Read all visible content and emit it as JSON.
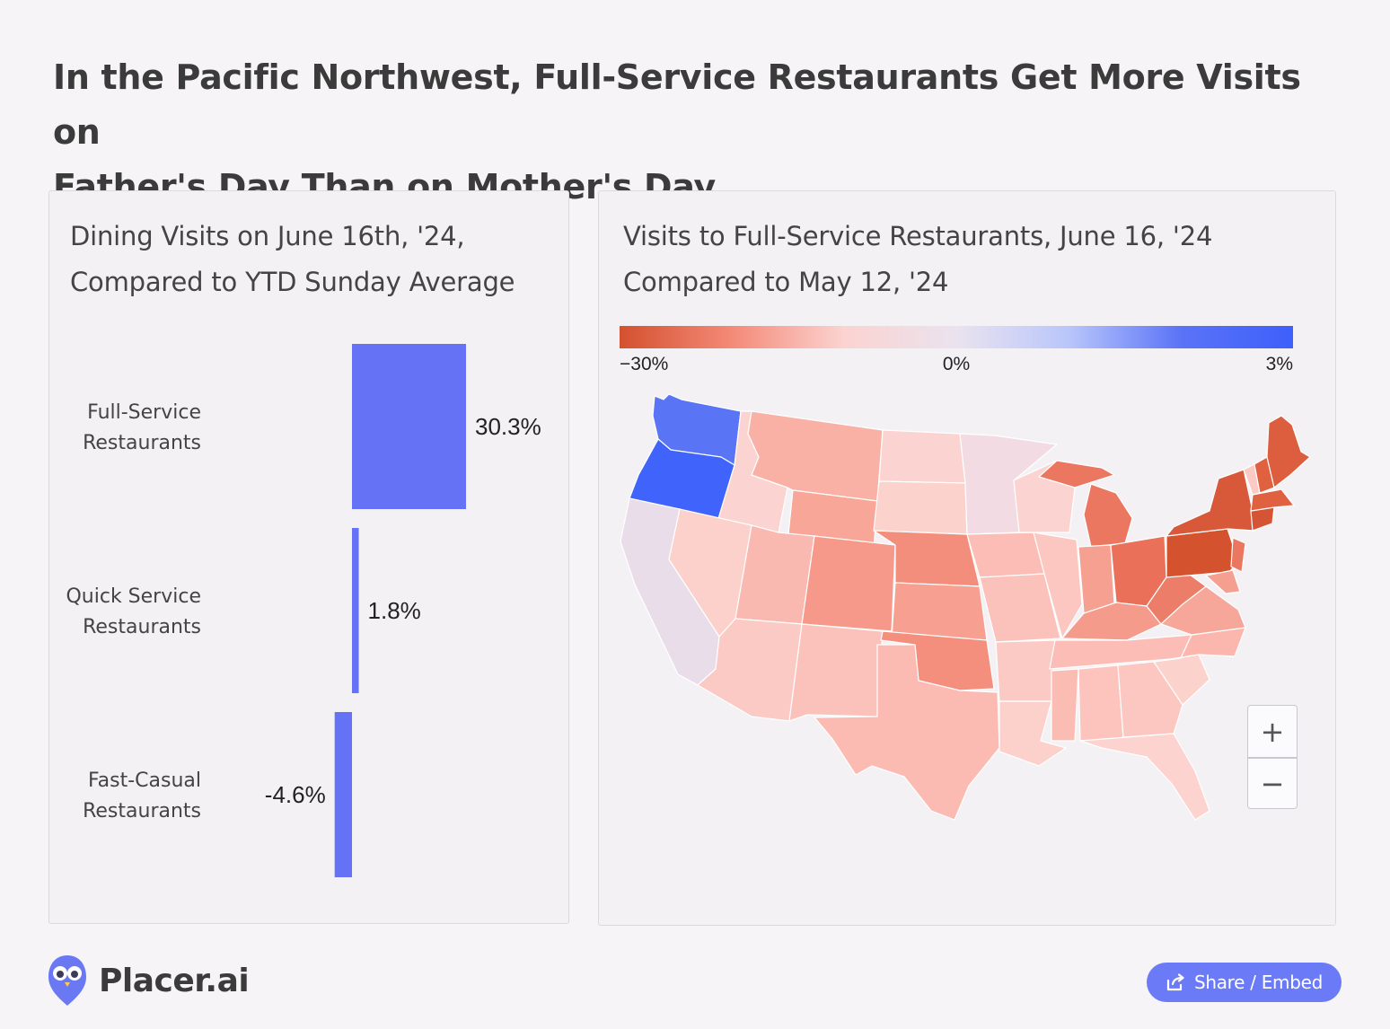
{
  "headline": {
    "line1": "In the Pacific Northwest, Full-Service Restaurants Get More Visits on",
    "line2": "Father's Day Than on Mother's Day"
  },
  "left_panel": {
    "title_line1": "Dining Visits on June 16th, '24,",
    "title_line2": "Compared to YTD Sunday Average"
  },
  "right_panel": {
    "title_line1": "Visits to Full-Service Restaurants, June 16, '24",
    "title_line2": "Compared to May 12, '24"
  },
  "chart_data": [
    {
      "type": "bar",
      "orientation": "vertical",
      "title": "Dining Visits on June 16th, '24, Compared to YTD Sunday Average",
      "categories": [
        [
          "Full-Service",
          "Restaurants"
        ],
        [
          "Quick Service",
          "Restaurants"
        ],
        [
          "Fast-Casual",
          "Restaurants"
        ]
      ],
      "values": [
        30.3,
        1.8,
        -4.6
      ],
      "value_labels": [
        "30.3%",
        "1.8%",
        "-4.6%"
      ],
      "bar_color": "#6672f6",
      "grid": false
    },
    {
      "type": "heatmap",
      "subtype": "choropleth-us-states",
      "title": "Visits to Full-Service Restaurants, June 16, '24 Compared to May 12, '24",
      "colorbar": {
        "tick_labels": [
          "−30%",
          "0%",
          "3%"
        ],
        "stops": [
          "#d3512f",
          "#f48a78",
          "#fbd3d0",
          "#eae3ef",
          "#b9c6fb",
          "#5b73f7",
          "#3d60fb"
        ]
      },
      "zoom_controls": [
        "+",
        "−"
      ]
    }
  ],
  "brand": {
    "name": "Placer.ai"
  },
  "share": {
    "label": "Share / Embed"
  },
  "colors": {
    "bar": "#6672f6",
    "button": "#6b7bf7",
    "background": "#f6f4f7"
  }
}
